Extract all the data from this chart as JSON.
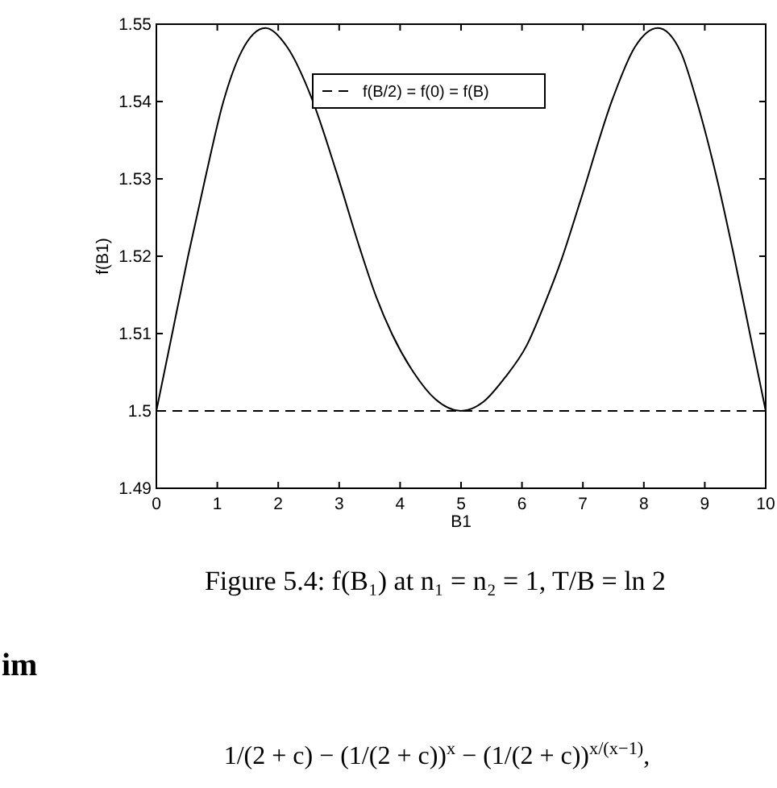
{
  "chart_data": {
    "type": "line",
    "xlabel": "B1",
    "ylabel": "f(B1)",
    "xlim": [
      0,
      10
    ],
    "ylim": [
      1.49,
      1.55
    ],
    "xticks": [
      0,
      1,
      2,
      3,
      4,
      5,
      6,
      7,
      8,
      9,
      10
    ],
    "yticks": [
      1.49,
      1.5,
      1.51,
      1.52,
      1.53,
      1.54,
      1.55
    ],
    "series": [
      {
        "color": "#000000",
        "line_style": "solid",
        "x": [
          0,
          0.26,
          0.52,
          0.8,
          1.1,
          1.4,
          1.79,
          2.15,
          2.55,
          2.95,
          3.34,
          3.61,
          3.87,
          4.22,
          4.58,
          5,
          5.37,
          5.72,
          6.08,
          6.38,
          6.65,
          6.96,
          7.49,
          7.85,
          8.23,
          8.6,
          8.87,
          9.2,
          9.48,
          9.74,
          10
        ],
        "values": [
          1.5,
          1.51,
          1.52,
          1.53,
          1.54,
          1.5465,
          1.5495,
          1.547,
          1.5404,
          1.531,
          1.521,
          1.5147,
          1.5099,
          1.505,
          1.5015,
          1.5,
          1.5012,
          1.5043,
          1.5085,
          1.514,
          1.5196,
          1.5272,
          1.5404,
          1.547,
          1.5495,
          1.5465,
          1.54,
          1.53,
          1.52,
          1.51,
          1.5
        ]
      },
      {
        "name": "f(B/2) = f(0) = f(B)",
        "color": "#000000",
        "line_style": "dashed",
        "x": [
          0,
          10
        ],
        "values": [
          1.5,
          1.5
        ]
      }
    ],
    "legend": "top",
    "marker": "none",
    "annotations": [
      "Figure 5.4: f(B₁) at n₁ = n₂ = 1, T/B = ln 2",
      "im",
      "1/(2 + c) − (1/(2 + c))$^{x}$ − (1/(2 + c))$^{x/(x−1)}$,"
    ]
  }
}
